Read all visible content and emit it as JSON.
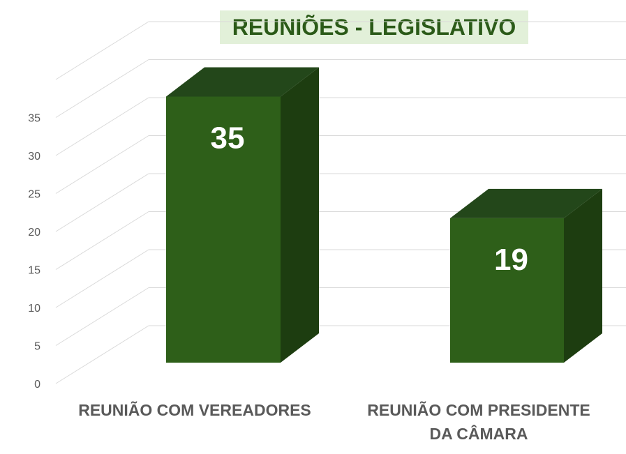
{
  "chart_data": {
    "type": "bar",
    "title": "REUNIÕES - LEGISLATIVO",
    "categories": [
      "REUNIÃO COM VEREADORES",
      "REUNIÃO COM PRESIDENTE DA CÂMARA"
    ],
    "category_lines": [
      [
        "REUNIÃO COM VEREADORES"
      ],
      [
        "REUNIÃO COM PRESIDENTE",
        "DA CÂMARA"
      ]
    ],
    "values": [
      35,
      19
    ],
    "data_labels": [
      "35",
      "19"
    ],
    "y_ticks": [
      0,
      5,
      10,
      15,
      20,
      25,
      30,
      35
    ],
    "ylim": [
      0,
      40
    ],
    "xlabel": "",
    "ylabel": "",
    "grid": true,
    "legend": "none",
    "style": "3d",
    "colors": {
      "bar_front": "#2e5f19",
      "bar_top": "#23471a",
      "bar_side": "#1d3d10",
      "title_text": "#2b5a18",
      "title_background": "#e2f0d9",
      "grid": "#d9d9d9",
      "axis_text": "#595959",
      "data_label": "#ffffff"
    }
  }
}
